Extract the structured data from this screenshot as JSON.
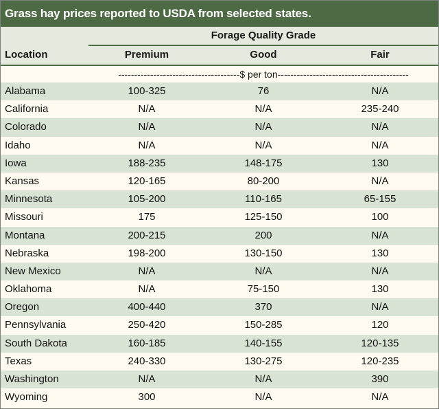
{
  "title": "Grass hay prices reported to USDA from selected states.",
  "header": {
    "group_label": "Forage Quality Grade",
    "location": "Location",
    "premium": "Premium",
    "good": "Good",
    "fair": "Fair"
  },
  "units": "--------------------------------------$ per ton-----------------------------------------",
  "rows": [
    {
      "location": "Alabama",
      "premium": "100-325",
      "good": "76",
      "fair": "N/A"
    },
    {
      "location": "California",
      "premium": "N/A",
      "good": "N/A",
      "fair": "235-240"
    },
    {
      "location": "Colorado",
      "premium": "N/A",
      "good": "N/A",
      "fair": "N/A"
    },
    {
      "location": "Idaho",
      "premium": "N/A",
      "good": "N/A",
      "fair": "N/A"
    },
    {
      "location": "Iowa",
      "premium": "188-235",
      "good": "148-175",
      "fair": "130"
    },
    {
      "location": "Kansas",
      "premium": "120-165",
      "good": "80-200",
      "fair": "N/A"
    },
    {
      "location": "Minnesota",
      "premium": "105-200",
      "good": "110-165",
      "fair": "65-155"
    },
    {
      "location": "Missouri",
      "premium": "175",
      "good": "125-150",
      "fair": "100"
    },
    {
      "location": "Montana",
      "premium": "200-215",
      "good": "200",
      "fair": "N/A"
    },
    {
      "location": "Nebraska",
      "premium": "198-200",
      "good": "130-150",
      "fair": "130"
    },
    {
      "location": "New Mexico",
      "premium": "N/A",
      "good": "N/A",
      "fair": "N/A"
    },
    {
      "location": "Oklahoma",
      "premium": "N/A",
      "good": "75-150",
      "fair": "130"
    },
    {
      "location": "Oregon",
      "premium": "400-440",
      "good": "370",
      "fair": "N/A"
    },
    {
      "location": "Pennsylvania",
      "premium": "250-420",
      "good": "150-285",
      "fair": "120"
    },
    {
      "location": "South Dakota",
      "premium": "160-185",
      "good": "140-155",
      "fair": "120-135"
    },
    {
      "location": "Texas",
      "premium": "240-330",
      "good": "130-275",
      "fair": "120-235"
    },
    {
      "location": "Washington",
      "premium": "N/A",
      "good": "N/A",
      "fair": "390"
    },
    {
      "location": "Wyoming",
      "premium": "300",
      "good": "N/A",
      "fair": "N/A"
    }
  ]
}
